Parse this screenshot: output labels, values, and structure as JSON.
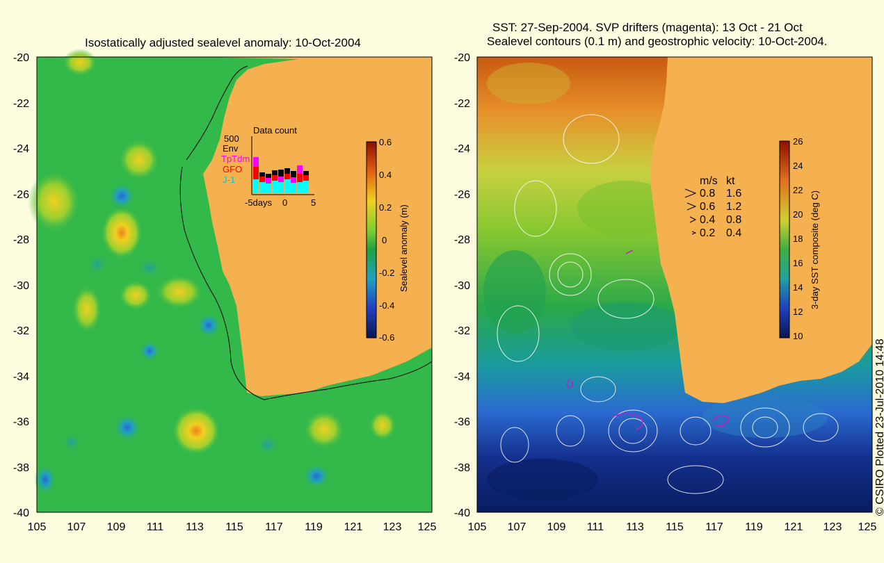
{
  "left_panel": {
    "title": "Isostatically adjusted sealevel anomaly: 10-Oct-2004",
    "y_ticks": [
      "-20",
      "-22",
      "-24",
      "-26",
      "-28",
      "-30",
      "-32",
      "-34",
      "-36",
      "-38",
      "-40"
    ],
    "x_ticks": [
      "105",
      "107",
      "109",
      "111",
      "113",
      "115",
      "117",
      "119",
      "121",
      "123",
      "125"
    ],
    "colorbar": {
      "label": "Sealevel anomaly (m)",
      "ticks": [
        "0.6",
        "0.4",
        "0.2",
        "0",
        "-0.2",
        "-0.4",
        "-0.6"
      ]
    },
    "inset": {
      "title": "Data count",
      "max_label": "500",
      "legend": [
        {
          "label": "Env",
          "color": "#000000"
        },
        {
          "label": "TpTdm",
          "color": "#ff00ff"
        },
        {
          "label": "GFO",
          "color": "#ff0000"
        },
        {
          "label": "J-1",
          "color": "#00ffff"
        }
      ],
      "x_labels": [
        "-5days",
        "0",
        "5"
      ]
    }
  },
  "right_panel": {
    "title_line1": "SST: 27-Sep-2004. SVP drifters (magenta): 13 Oct - 21 Oct",
    "title_line2": "Sealevel contours (0.1 m) and geostrophic velocity: 10-Oct-2004.",
    "y_ticks": [
      "-20",
      "-22",
      "-24",
      "-26",
      "-28",
      "-30",
      "-32",
      "-34",
      "-36",
      "-38",
      "-40"
    ],
    "x_ticks": [
      "105",
      "107",
      "109",
      "111",
      "113",
      "115",
      "117",
      "119",
      "121",
      "123",
      "125"
    ],
    "colorbar": {
      "label": "3-day SST composite (deg C)",
      "ticks": [
        "26",
        "24",
        "22",
        "20",
        "18",
        "16",
        "14",
        "12",
        "10"
      ]
    },
    "velocity_key": {
      "header_ms": "m/s",
      "header_kt": "kt",
      "rows": [
        {
          "ms": "0.8",
          "kt": "1.6"
        },
        {
          "ms": "0.6",
          "kt": "1.2"
        },
        {
          "ms": "0.4",
          "kt": "0.8"
        },
        {
          "ms": "0.2",
          "kt": "0.4"
        }
      ]
    }
  },
  "credit": "© CSIRO Plotted 23-Jul-2010 14:48",
  "colors": {
    "land": "#f5b04f",
    "background": "#fffde0",
    "ocean_left": "#33b84a",
    "sst_warm": "#e06a10",
    "sst_cold": "#0a2a8a"
  }
}
